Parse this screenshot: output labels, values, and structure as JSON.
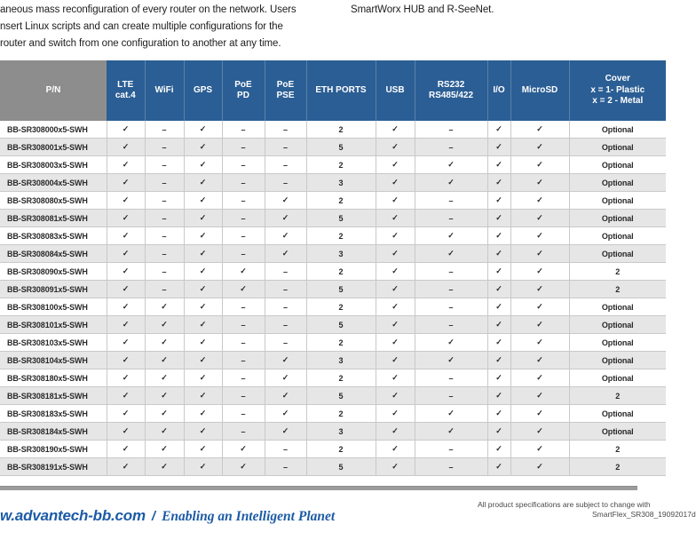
{
  "page": {
    "intro_left_lines": [
      "aneous mass reconfiguration of every router on the network. Users",
      "nsert Linux scripts and can create multiple configurations for the",
      "router and switch from one configuration to another at any time."
    ],
    "intro_right": "SmartWorx HUB and R-SeeNet."
  },
  "table": {
    "columns": [
      {
        "id": "pn",
        "lines": [
          "P/N"
        ],
        "width": 120
      },
      {
        "id": "lte-cat4",
        "lines": [
          "LTE",
          "cat.4"
        ],
        "width": 43
      },
      {
        "id": "wifi",
        "lines": [
          "WiFi"
        ],
        "width": 44
      },
      {
        "id": "gps",
        "lines": [
          "GPS"
        ],
        "width": 43
      },
      {
        "id": "poe-pd",
        "lines": [
          "PoE",
          "PD"
        ],
        "width": 48
      },
      {
        "id": "poe-pse",
        "lines": [
          "PoE",
          "PSE"
        ],
        "width": 47
      },
      {
        "id": "eth-ports",
        "lines": [
          "ETH PORTS"
        ],
        "width": 78
      },
      {
        "id": "usb",
        "lines": [
          "USB"
        ],
        "width": 44
      },
      {
        "id": "rs232",
        "lines": [
          "RS232",
          "RS485/422"
        ],
        "width": 82
      },
      {
        "id": "io",
        "lines": [
          "I/O"
        ],
        "width": 26
      },
      {
        "id": "microsd",
        "lines": [
          "MicroSD"
        ],
        "width": 66
      },
      {
        "id": "cover",
        "lines": [
          "Cover",
          "x = 1- Plastic",
          "x = 2 - Metal"
        ],
        "width": 109
      }
    ],
    "check_glyph": "✓",
    "dash_glyph": "–",
    "rows": [
      [
        "BB-SR308000x5-SWH",
        "✓",
        "–",
        "✓",
        "–",
        "–",
        "2",
        "✓",
        "–",
        "✓",
        "✓",
        "Optional"
      ],
      [
        "BB-SR308001x5-SWH",
        "✓",
        "–",
        "✓",
        "–",
        "–",
        "5",
        "✓",
        "–",
        "✓",
        "✓",
        "Optional"
      ],
      [
        "BB-SR308003x5-SWH",
        "✓",
        "–",
        "✓",
        "–",
        "–",
        "2",
        "✓",
        "✓",
        "✓",
        "✓",
        "Optional"
      ],
      [
        "BB-SR308004x5-SWH",
        "✓",
        "–",
        "✓",
        "–",
        "–",
        "3",
        "✓",
        "✓",
        "✓",
        "✓",
        "Optional"
      ],
      [
        "BB-SR308080x5-SWH",
        "✓",
        "–",
        "✓",
        "–",
        "✓",
        "2",
        "✓",
        "–",
        "✓",
        "✓",
        "Optional"
      ],
      [
        "BB-SR308081x5-SWH",
        "✓",
        "–",
        "✓",
        "–",
        "✓",
        "5",
        "✓",
        "–",
        "✓",
        "✓",
        "Optional"
      ],
      [
        "BB-SR308083x5-SWH",
        "✓",
        "–",
        "✓",
        "–",
        "✓",
        "2",
        "✓",
        "✓",
        "✓",
        "✓",
        "Optional"
      ],
      [
        "BB-SR308084x5-SWH",
        "✓",
        "–",
        "✓",
        "–",
        "✓",
        "3",
        "✓",
        "✓",
        "✓",
        "✓",
        "Optional"
      ],
      [
        "BB-SR308090x5-SWH",
        "✓",
        "–",
        "✓",
        "✓",
        "–",
        "2",
        "✓",
        "–",
        "✓",
        "✓",
        "2"
      ],
      [
        "BB-SR308091x5-SWH",
        "✓",
        "–",
        "✓",
        "✓",
        "–",
        "5",
        "✓",
        "–",
        "✓",
        "✓",
        "2"
      ],
      [
        "BB-SR308100x5-SWH",
        "✓",
        "✓",
        "✓",
        "–",
        "–",
        "2",
        "✓",
        "–",
        "✓",
        "✓",
        "Optional"
      ],
      [
        "BB-SR308101x5-SWH",
        "✓",
        "✓",
        "✓",
        "–",
        "–",
        "5",
        "✓",
        "–",
        "✓",
        "✓",
        "Optional"
      ],
      [
        "BB-SR308103x5-SWH",
        "✓",
        "✓",
        "✓",
        "–",
        "–",
        "2",
        "✓",
        "✓",
        "✓",
        "✓",
        "Optional"
      ],
      [
        "BB-SR308104x5-SWH",
        "✓",
        "✓",
        "✓",
        "–",
        "✓",
        "3",
        "✓",
        "✓",
        "✓",
        "✓",
        "Optional"
      ],
      [
        "BB-SR308180x5-SWH",
        "✓",
        "✓",
        "✓",
        "–",
        "✓",
        "2",
        "✓",
        "–",
        "✓",
        "✓",
        "Optional"
      ],
      [
        "BB-SR308181x5-SWH",
        "✓",
        "✓",
        "✓",
        "–",
        "✓",
        "5",
        "✓",
        "–",
        "✓",
        "✓",
        "2"
      ],
      [
        "BB-SR308183x5-SWH",
        "✓",
        "✓",
        "✓",
        "–",
        "✓",
        "2",
        "✓",
        "✓",
        "✓",
        "✓",
        "Optional"
      ],
      [
        "BB-SR308184x5-SWH",
        "✓",
        "✓",
        "✓",
        "–",
        "✓",
        "3",
        "✓",
        "✓",
        "✓",
        "✓",
        "Optional"
      ],
      [
        "BB-SR308190x5-SWH",
        "✓",
        "✓",
        "✓",
        "✓",
        "–",
        "2",
        "✓",
        "–",
        "✓",
        "✓",
        "2"
      ],
      [
        "BB-SR308191x5-SWH",
        "✓",
        "✓",
        "✓",
        "✓",
        "–",
        "5",
        "✓",
        "–",
        "✓",
        "✓",
        "2"
      ]
    ]
  },
  "footer": {
    "website": "w.advantech-bb.com",
    "separator": "/",
    "slogan": "Enabling an Intelligent Planet",
    "note_line1": "All product specifications are subject to change with",
    "note_line2": "SmartFlex_SR308_19092017d"
  },
  "colors": {
    "header_blue": "#2b5e94",
    "pn_gray": "#8d8d8d",
    "stripe_gray": "#e6e6e6",
    "divider_gray": "#9c9c9c",
    "footer_blue": "#1c5ba6"
  }
}
